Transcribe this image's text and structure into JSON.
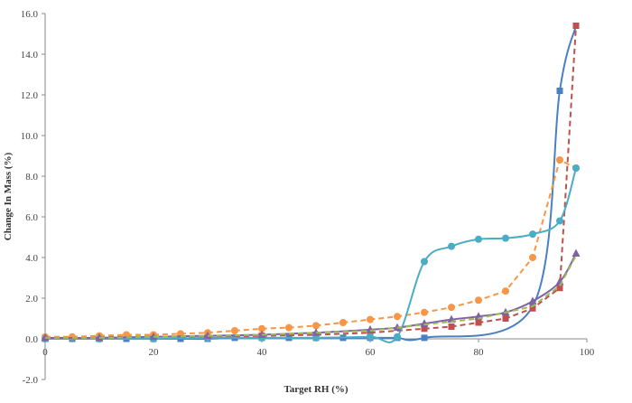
{
  "chart_data": {
    "type": "line",
    "title": "",
    "xlabel": "Target RH (%)",
    "ylabel": "Change In Mass (%)",
    "xlim": [
      0,
      100
    ],
    "ylim": [
      -2.0,
      16.0
    ],
    "x_ticks": [
      0,
      20,
      40,
      60,
      80,
      100
    ],
    "x_tick_labels": [
      "0",
      "20",
      "40",
      "60",
      "80",
      "100"
    ],
    "y_ticks": [
      -2.0,
      0.0,
      2.0,
      4.0,
      6.0,
      8.0,
      10.0,
      12.0,
      14.0,
      16.0
    ],
    "y_tick_labels": [
      "-2.0",
      "0.0",
      "2.0",
      "4.0",
      "6.0",
      "8.0",
      "10.0",
      "12.0",
      "14.0",
      "16.0"
    ],
    "grid": false,
    "legend": "none",
    "series": [
      {
        "color": "#4a7fc1",
        "style": "solid",
        "marker": "square",
        "x": [
          0,
          5,
          10,
          15,
          20,
          25,
          30,
          35,
          40,
          45,
          50,
          55,
          60,
          65,
          70,
          90,
          95,
          98
        ],
        "y": [
          0.0,
          0.0,
          0.0,
          0.0,
          0.0,
          0.0,
          0.0,
          0.05,
          0.05,
          0.05,
          0.05,
          0.05,
          0.05,
          0.05,
          0.05,
          1.6,
          12.2,
          15.4
        ]
      },
      {
        "color": "#c0504d",
        "style": "dashed",
        "marker": "square",
        "x": [
          0,
          10,
          20,
          30,
          40,
          50,
          60,
          70,
          75,
          80,
          85,
          90,
          95,
          98
        ],
        "y": [
          0.05,
          0.1,
          0.1,
          0.1,
          0.15,
          0.2,
          0.3,
          0.5,
          0.6,
          0.8,
          1.0,
          1.5,
          2.5,
          15.4
        ]
      },
      {
        "color": "#f79646",
        "style": "dashed",
        "marker": "circle",
        "x": [
          0,
          5,
          10,
          15,
          20,
          25,
          30,
          35,
          40,
          45,
          50,
          55,
          60,
          65,
          70,
          75,
          80,
          85,
          90,
          95,
          98
        ],
        "y": [
          0.1,
          0.1,
          0.15,
          0.2,
          0.2,
          0.25,
          0.3,
          0.4,
          0.5,
          0.55,
          0.65,
          0.8,
          0.95,
          1.1,
          1.3,
          1.55,
          1.9,
          2.35,
          4.0,
          8.8,
          8.4
        ]
      },
      {
        "color": "#4bacc6",
        "style": "solid",
        "marker": "circle",
        "x": [
          0,
          10,
          20,
          30,
          40,
          50,
          60,
          65,
          70,
          75,
          80,
          85,
          90,
          95,
          98
        ],
        "y": [
          0.0,
          0.0,
          0.0,
          0.05,
          0.05,
          0.05,
          0.1,
          0.1,
          3.8,
          4.55,
          4.9,
          4.95,
          5.15,
          5.8,
          8.4
        ]
      },
      {
        "color": "#8064a2",
        "style": "solid",
        "marker": "triangle",
        "x": [
          0,
          10,
          20,
          30,
          40,
          50,
          60,
          65,
          70,
          75,
          80,
          85,
          90,
          95,
          98
        ],
        "y": [
          0.05,
          0.05,
          0.1,
          0.15,
          0.2,
          0.3,
          0.45,
          0.55,
          0.75,
          0.95,
          1.1,
          1.3,
          1.85,
          2.8,
          4.2
        ]
      },
      {
        "color": "#9bbb59",
        "style": "dashed",
        "marker": "none",
        "x": [
          0,
          10,
          20,
          30,
          40,
          50,
          60,
          70,
          80,
          90,
          95,
          98
        ],
        "y": [
          0.05,
          0.05,
          0.1,
          0.15,
          0.2,
          0.3,
          0.4,
          0.7,
          1.0,
          1.6,
          2.6,
          4.1
        ]
      }
    ]
  }
}
